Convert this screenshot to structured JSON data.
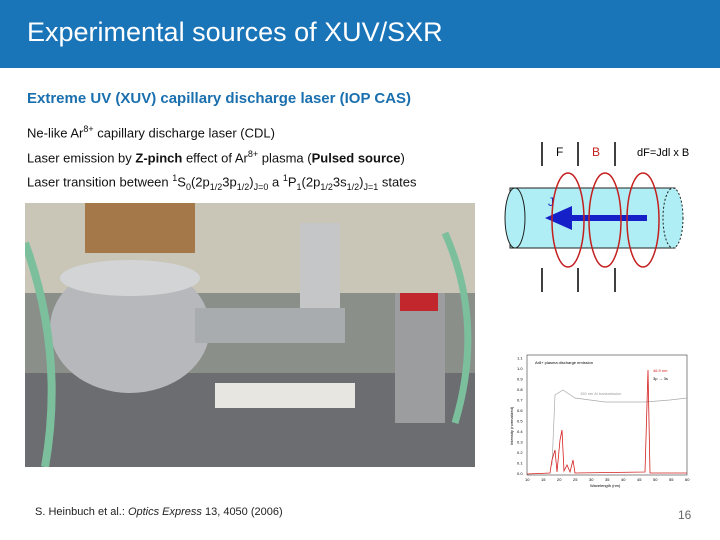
{
  "slide": {
    "title": "Experimental sources of XUV/SXR",
    "subtitle": "Extreme UV (XUV) capillary discharge laser (IOP CAS)",
    "page_number": "16",
    "header_color": "#1a74b8"
  },
  "bullets": {
    "b1": {
      "a": "Ne-like Ar",
      "sup": "8+",
      "b": " capillary discharge laser (CDL)"
    },
    "b2": {
      "a": "Laser emission by ",
      "bold1": "Z-pinch",
      "b": " effect of Ar",
      "sup": "8+",
      "c": " plasma (",
      "bold2": "Pulsed source",
      "d": ")"
    },
    "b3": {
      "a": "Laser transition between ",
      "s1": "1",
      "t1": "S",
      "s2": "0",
      "t2": "(2p",
      "s3": "1/2",
      "t3": "3p",
      "s4": "1/2",
      "t4": ")",
      "s5": "J=0",
      "t5": " a ",
      "s6": "1",
      "t6": "P",
      "s7": "1",
      "t7": "(2p",
      "s8": "1/2",
      "t8": "3s",
      "s9": "1/2",
      "t9": ")",
      "s10": "J=1",
      "t10": " states"
    }
  },
  "diagram": {
    "force_label": "F",
    "field_label": "B",
    "current_label": "J",
    "equation": "dF=Jdl x B"
  },
  "spectrum": {
    "legend": "Ar8+ plasma discharge emission",
    "filter_label": "150 nm Al transmission",
    "line_label": "46.9 nm",
    "transition": "3p → 3s",
    "ylabel": "Intensity (normalized)",
    "xlabel": "Wavelength (nm)",
    "xticks": [
      "10",
      "15",
      "20",
      "25",
      "30",
      "35",
      "40",
      "45",
      "50",
      "55",
      "60"
    ],
    "yticks": [
      "0.0",
      "0.1",
      "0.2",
      "0.3",
      "0.4",
      "0.5",
      "0.6",
      "0.7",
      "0.8",
      "0.9",
      "1.0",
      "1.1"
    ]
  },
  "citation": {
    "authors": "S. Heinbuch et al.: ",
    "journal": "Optics Express",
    "rest": " 13, 4050 (2006)"
  }
}
